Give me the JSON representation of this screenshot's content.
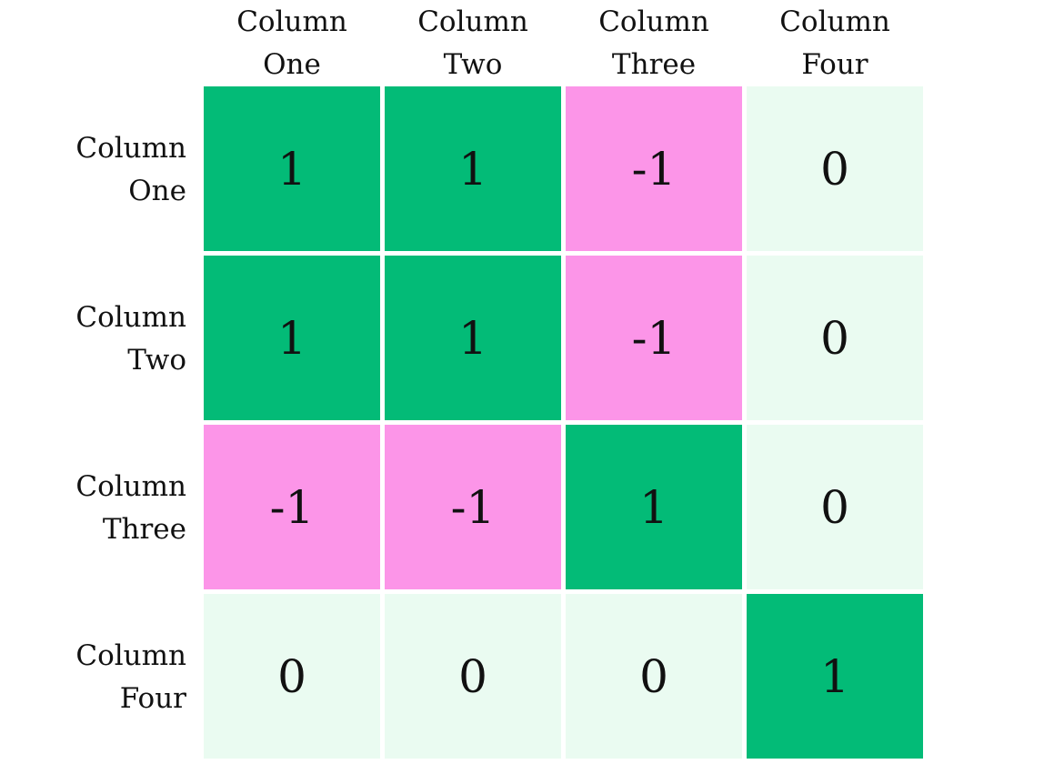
{
  "chart_data": {
    "type": "heatmap",
    "title": "",
    "xlabel": "",
    "ylabel": "",
    "x_labels": [
      "Column\nOne",
      "Column\nTwo",
      "Column\nThree",
      "Column\nFour"
    ],
    "y_labels": [
      "Column\nOne",
      "Column\nTwo",
      "Column\nThree",
      "Column\nFour"
    ],
    "values": [
      [
        "1",
        "1",
        "-1",
        "0"
      ],
      [
        "1",
        "1",
        "-1",
        "0"
      ],
      [
        "-1",
        "-1",
        "1",
        "0"
      ],
      [
        "0",
        "0",
        "0",
        "1"
      ]
    ],
    "colors": {
      "positive": "#03bb77",
      "negative": "#fc95e8",
      "neutral": "#eafbf1"
    },
    "legend": "none",
    "grid": false
  }
}
